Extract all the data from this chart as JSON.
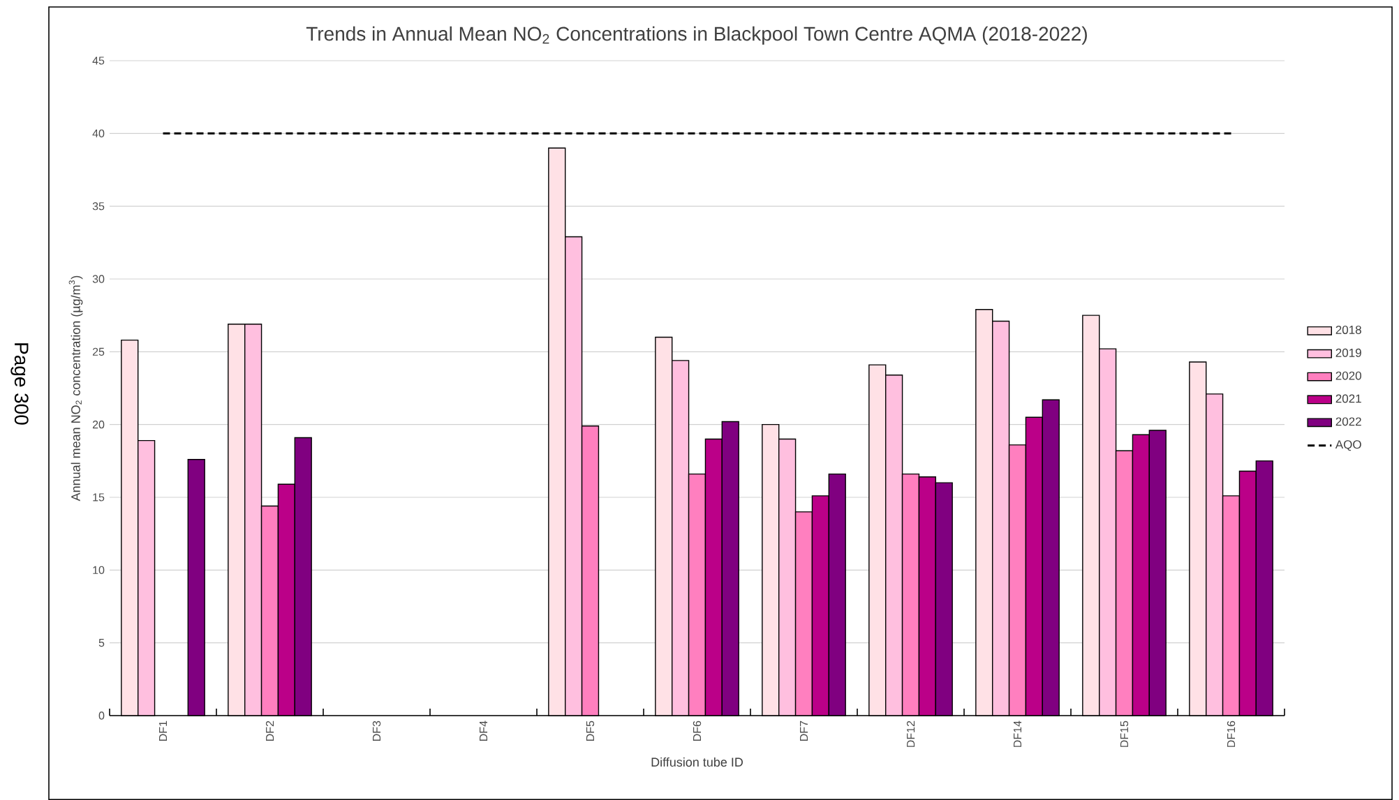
{
  "chart_data": {
    "type": "bar",
    "title": "Trends in Annual Mean NO$_{2}$ Concentrations in Blackpool Town Centre AQMA (2018-2022)",
    "xlabel": "Diffusion tube ID",
    "ylabel": "Annual mean NO$_{2}$ concentration (µg/m$^{3}$)",
    "categories": [
      "DF1",
      "DF2",
      "DF3",
      "DF4",
      "DF5",
      "DF6",
      "DF7",
      "DF12",
      "DF14",
      "DF15",
      "DF16"
    ],
    "series": [
      {
        "name": "2018",
        "color": "#ffe1e6",
        "values": [
          25.8,
          26.9,
          null,
          null,
          39.0,
          26.0,
          20.0,
          24.1,
          27.9,
          27.5,
          24.3
        ]
      },
      {
        "name": "2019",
        "color": "#ffbfdf",
        "values": [
          18.9,
          26.9,
          null,
          null,
          32.9,
          24.4,
          19.0,
          23.4,
          27.1,
          25.2,
          22.1
        ]
      },
      {
        "name": "2020",
        "color": "#ff7fbf",
        "values": [
          null,
          14.4,
          null,
          null,
          19.9,
          16.6,
          14.0,
          16.6,
          18.6,
          18.2,
          15.1
        ]
      },
      {
        "name": "2021",
        "color": "#bb0088",
        "values": [
          null,
          15.9,
          null,
          null,
          null,
          19.0,
          15.1,
          16.4,
          20.5,
          19.3,
          16.8
        ]
      },
      {
        "name": "2022",
        "color": "#800080",
        "values": [
          17.6,
          19.1,
          null,
          null,
          null,
          20.2,
          16.6,
          16.0,
          21.7,
          19.6,
          17.5
        ]
      }
    ],
    "ref_lines": [
      {
        "axis": "y",
        "value": 40,
        "label": "AQO",
        "color": "#000000",
        "line_style": "dashed"
      }
    ],
    "ylim": [
      0,
      45
    ],
    "yticks": [
      0,
      5,
      10,
      15,
      20,
      25,
      30,
      35,
      40,
      45
    ],
    "grid": "y",
    "legend": "right",
    "annotations": [
      "Page 300"
    ]
  }
}
